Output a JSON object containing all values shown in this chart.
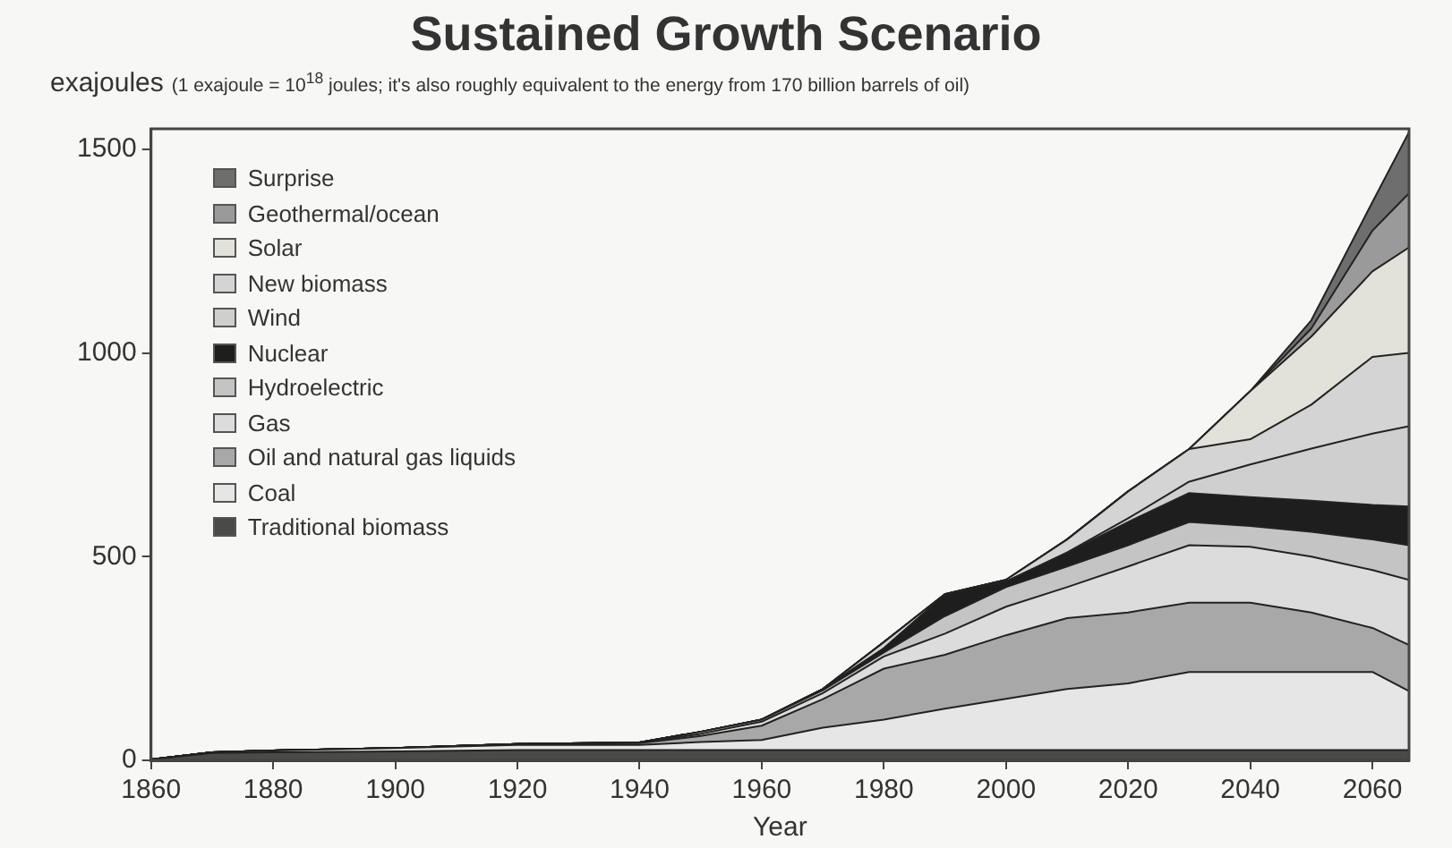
{
  "chart_data": {
    "type": "area",
    "stacked": true,
    "title": "Sustained Growth Scenario",
    "ylabel": "exajoules",
    "subtitle": "(1 exajoule = 10$^{18}$ joules; it's also roughly equivalent to the energy from 170 billion barrels of oil)",
    "xlabel": "Year",
    "x": [
      1860,
      1870,
      1880,
      1900,
      1920,
      1940,
      1950,
      1960,
      1970,
      1980,
      1990,
      2000,
      2010,
      2020,
      2030,
      2040,
      2050,
      2060,
      2066
    ],
    "series": [
      {
        "name": "Traditional biomass",
        "color": "#4a4a4a",
        "values": [
          2,
          18,
          20,
          22,
          25,
          25,
          25,
          25,
          25,
          25,
          25,
          25,
          25,
          25,
          25,
          25,
          25,
          25,
          25
        ]
      },
      {
        "name": "Coal",
        "color": "#e6e6e6",
        "values": [
          0,
          2,
          4,
          8,
          13,
          13,
          20,
          25,
          55,
          75,
          102,
          126,
          150,
          164,
          192,
          192,
          192,
          192,
          145
        ]
      },
      {
        "name": "Oil and natural gas liquids",
        "color": "#a8a8a8",
        "values": [
          0,
          0,
          0,
          0,
          2,
          4,
          15,
          35,
          70,
          125,
          132,
          156,
          174,
          174,
          170,
          170,
          146,
          108,
          113
        ]
      },
      {
        "name": "Gas",
        "color": "#dcdcdc",
        "values": [
          0,
          0,
          0,
          0,
          0,
          1,
          5,
          10,
          15,
          30,
          52,
          70,
          76,
          113,
          141,
          137,
          137,
          142,
          160
        ]
      },
      {
        "name": "Hydroelectric",
        "color": "#c4c4c4",
        "values": [
          0,
          0,
          0,
          0,
          0,
          1,
          5,
          5,
          7,
          10,
          43,
          48,
          51,
          52,
          57,
          51,
          61,
          75,
          85
        ]
      },
      {
        "name": "Nuclear",
        "color": "#1e1e1e",
        "values": [
          0,
          0,
          0,
          0,
          0,
          0,
          0,
          0,
          3,
          10,
          52,
          14,
          33,
          57,
          71,
          71,
          76,
          85,
          95
        ]
      },
      {
        "name": "Wind",
        "color": "#cfcfcf",
        "values": [
          0,
          0,
          0,
          0,
          0,
          0,
          0,
          0,
          0,
          0,
          0,
          0,
          1,
          9,
          28,
          80,
          128,
          175,
          197
        ]
      },
      {
        "name": "New biomass",
        "color": "#d4d4d4",
        "values": [
          0,
          0,
          0,
          0,
          0,
          0,
          0,
          0,
          0,
          15,
          2,
          4,
          32,
          66,
          80,
          62,
          108,
          188,
          180
        ]
      },
      {
        "name": "Solar",
        "color": "#e2e2da",
        "values": [
          0,
          0,
          0,
          0,
          0,
          0,
          0,
          0,
          0,
          0,
          0,
          0,
          0,
          0,
          0,
          118,
          167,
          210,
          259
        ]
      },
      {
        "name": "Geothermal/ocean",
        "color": "#9a9a9a",
        "values": [
          0,
          0,
          0,
          0,
          0,
          0,
          0,
          0,
          0,
          0,
          0,
          0,
          0,
          0,
          0,
          0,
          20,
          100,
          133
        ]
      },
      {
        "name": "Surprise",
        "color": "#6e6e6e",
        "values": [
          0,
          0,
          0,
          0,
          0,
          0,
          0,
          0,
          0,
          0,
          0,
          0,
          0,
          0,
          0,
          0,
          20,
          70,
          150
        ]
      }
    ],
    "xlim": [
      1860,
      2066
    ],
    "xticks": [
      1860,
      1880,
      1900,
      1920,
      1940,
      1960,
      1980,
      2000,
      2020,
      2040,
      2060
    ],
    "ylim": [
      0,
      1550
    ],
    "yticks": [
      0,
      500,
      1000,
      1500
    ],
    "grid": false,
    "legend": "top left"
  }
}
